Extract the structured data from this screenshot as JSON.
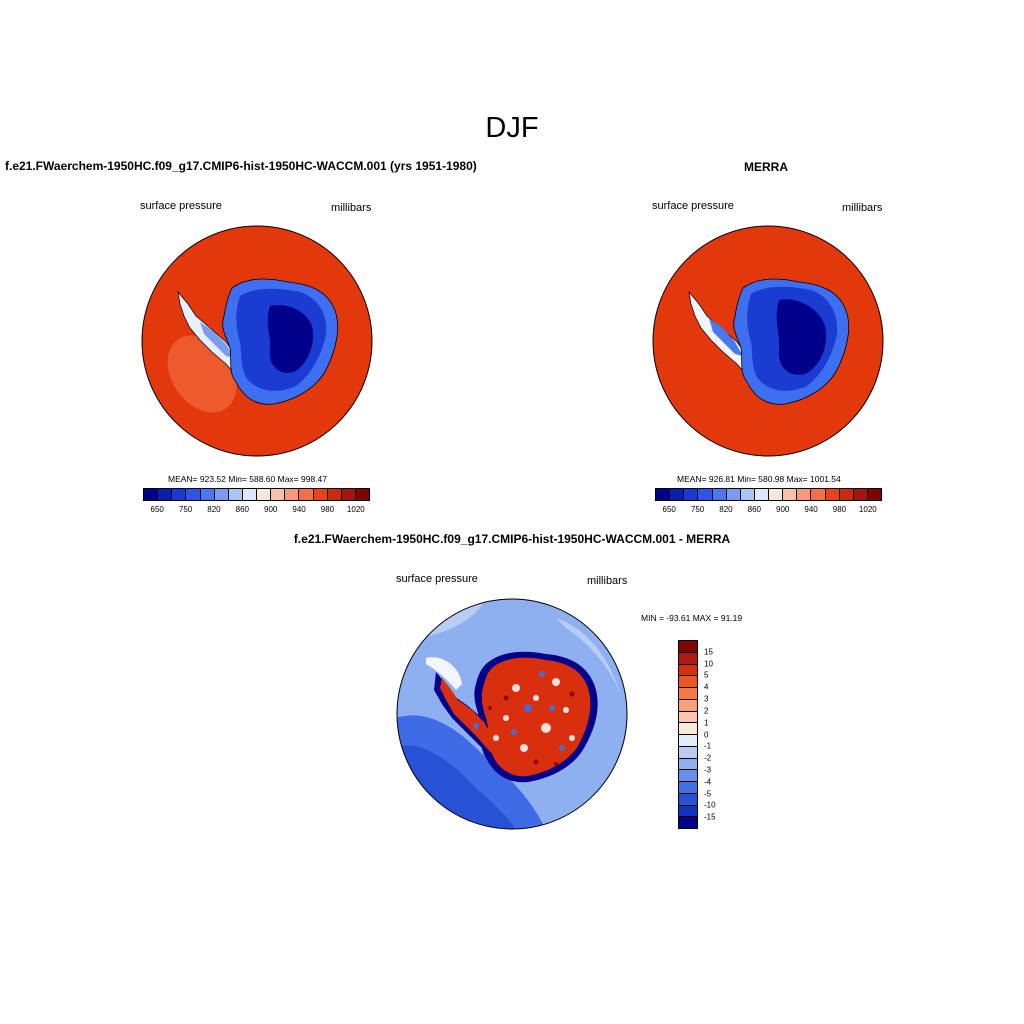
{
  "figure": {
    "title": "DJF"
  },
  "panels": {
    "model": {
      "title": "f.e21.FWaerchem-1950HC.f09_g17.CMIP6-hist-1950HC-WACCM.001 (yrs 1951-1980)",
      "left_label": "surface pressure",
      "right_label": "millibars",
      "stats": "MEAN= 923.52  Min= 588.60  Max= 998.47"
    },
    "obs": {
      "title": "MERRA",
      "left_label": "surface pressure",
      "right_label": "millibars",
      "stats": "MEAN= 926.81  Min= 580.98  Max= 1001.54"
    },
    "diff": {
      "title": "f.e21.FWaerchem-1950HC.f09_g17.CMIP6-hist-1950HC-WACCM.001 - MERRA",
      "left_label": "surface pressure",
      "right_label": "millibars",
      "stats": "MIN = -93.61 MAX =  91.19"
    }
  },
  "colorbar_abs": {
    "colors": [
      "#00008a",
      "#0a1fb0",
      "#1838d0",
      "#2a55e8",
      "#4a78f0",
      "#7a9cf0",
      "#aac4f8",
      "#dbe8fb",
      "#ffe6da",
      "#fbc2a8",
      "#f79a78",
      "#f26f48",
      "#e8431e",
      "#c92a10",
      "#a01808",
      "#7a0606"
    ],
    "tick_labels": [
      "650",
      "750",
      "820",
      "860",
      "900",
      "940",
      "980",
      "1020"
    ]
  },
  "colorbar_diff": {
    "colors": [
      "#7a0606",
      "#b01a0a",
      "#d8300e",
      "#ee5525",
      "#f57a48",
      "#f9a07a",
      "#fbc6ab",
      "#fde8dc",
      "#e3ecfa",
      "#b8cdf5",
      "#8fb0f0",
      "#6890ea",
      "#4470e2",
      "#2652d6",
      "#1234bc",
      "#00008a"
    ],
    "tick_labels": [
      "15",
      "10",
      "5",
      "4",
      "3",
      "2",
      "1",
      "0",
      "-1",
      "-2",
      "-3",
      "-4",
      "-5",
      "-10",
      "-15"
    ]
  },
  "map_colors": {
    "ocean_abs": "#e2380c",
    "ocean_abs_light": "#ec5a2e",
    "ice_deep": "#00008a",
    "ice_mid": "#1a3cd0",
    "ice_edge": "#3d6ff0",
    "diff_ocean": "#8fb0f0",
    "diff_ocean_dark": "#3f6be6",
    "diff_land": "#d8300e"
  }
}
